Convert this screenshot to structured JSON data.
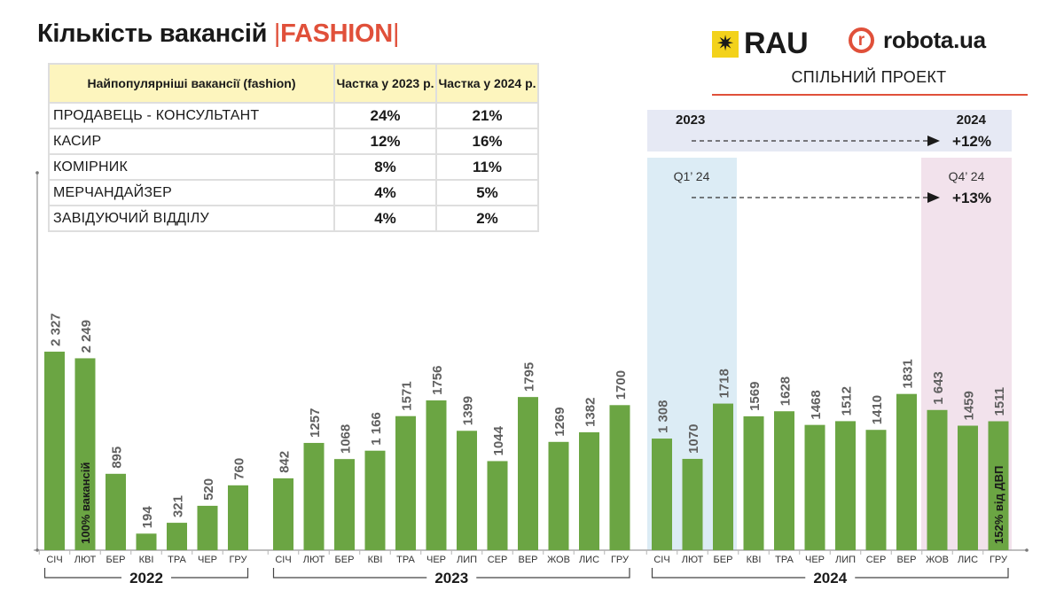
{
  "title": {
    "main": "Кількість вакансій",
    "sep": "|",
    "accent": "FASHION"
  },
  "logos": {
    "rau": "RAU",
    "rau_mark": "✷",
    "robota": "robota.ua",
    "robota_mark": "r",
    "joint_text": "СПІЛЬНИЙ ПРОЕКТ"
  },
  "table": {
    "headers": [
      "Найпопулярніші вакансії (fashion)",
      "Частка у 2023 р.",
      "Частка у 2024 р."
    ],
    "rows": [
      [
        "ПРОДАВЕЦЬ - КОНСУЛЬТАНТ",
        "24%",
        "21%"
      ],
      [
        "КАСИР",
        "12%",
        "16%"
      ],
      [
        "КОМІРНИК",
        "8%",
        "11%"
      ],
      [
        "МЕРЧАНДАЙЗЕР",
        "4%",
        "5%"
      ],
      [
        "ЗАВІДУЮЧИЙ ВІДДІЛУ",
        "4%",
        "2%"
      ]
    ]
  },
  "annotations": {
    "year_from": "2023",
    "year_to": "2024",
    "year_change": "+12%",
    "q_from": "Q1’ 24",
    "q_to": "Q4’ 24",
    "q_change": "+13%",
    "bar_note_first": "100% вакансій",
    "bar_note_last": "152% від ДВП"
  },
  "colors": {
    "bar": "#6ba543",
    "accent": "#e0503a",
    "header_bg": "#fdf5be",
    "band_year": "#e6e9f4",
    "band_q1": "#dcecf5",
    "band_q4": "#f2e2ec",
    "value_label": "#5f5f5f"
  },
  "chart_data": {
    "type": "bar",
    "groups": [
      {
        "year": "2022",
        "categories": [
          "СІЧ",
          "ЛЮТ",
          "БЕР",
          "КВІ",
          "ТРА",
          "ЧЕР",
          "ГРУ"
        ],
        "values": [
          2327,
          2249,
          895,
          194,
          321,
          520,
          760
        ],
        "labels": [
          "2 327",
          "2 249",
          "895",
          "194",
          "321",
          "520",
          "760"
        ]
      },
      {
        "year": "2023",
        "categories": [
          "СІЧ",
          "ЛЮТ",
          "БЕР",
          "КВІ",
          "ТРА",
          "ЧЕР",
          "ЛИП",
          "СЕР",
          "ВЕР",
          "ЖОВ",
          "ЛИС",
          "ГРУ"
        ],
        "values": [
          842,
          1257,
          1068,
          1166,
          1571,
          1756,
          1399,
          1044,
          1795,
          1269,
          1382,
          1700
        ],
        "labels": [
          "842",
          "1257",
          "1068",
          "1 166",
          "1571",
          "1756",
          "1399",
          "1044",
          "1795",
          "1269",
          "1382",
          "1700"
        ]
      },
      {
        "year": "2024",
        "categories": [
          "СІЧ",
          "ЛЮТ",
          "БЕР",
          "КВІ",
          "ТРА",
          "ЧЕР",
          "ЛИП",
          "СЕР",
          "ВЕР",
          "ЖОВ",
          "ЛИС",
          "ГРУ"
        ],
        "values": [
          1308,
          1070,
          1718,
          1569,
          1628,
          1468,
          1512,
          1410,
          1831,
          1643,
          1459,
          1511
        ],
        "labels": [
          "1 308",
          "1070",
          "1718",
          "1569",
          "1628",
          "1468",
          "1512",
          "1410",
          "1831",
          "1 643",
          "1459",
          "1511"
        ]
      }
    ],
    "ylim": [
      0,
      2500
    ],
    "grid": false,
    "legend": "none"
  }
}
